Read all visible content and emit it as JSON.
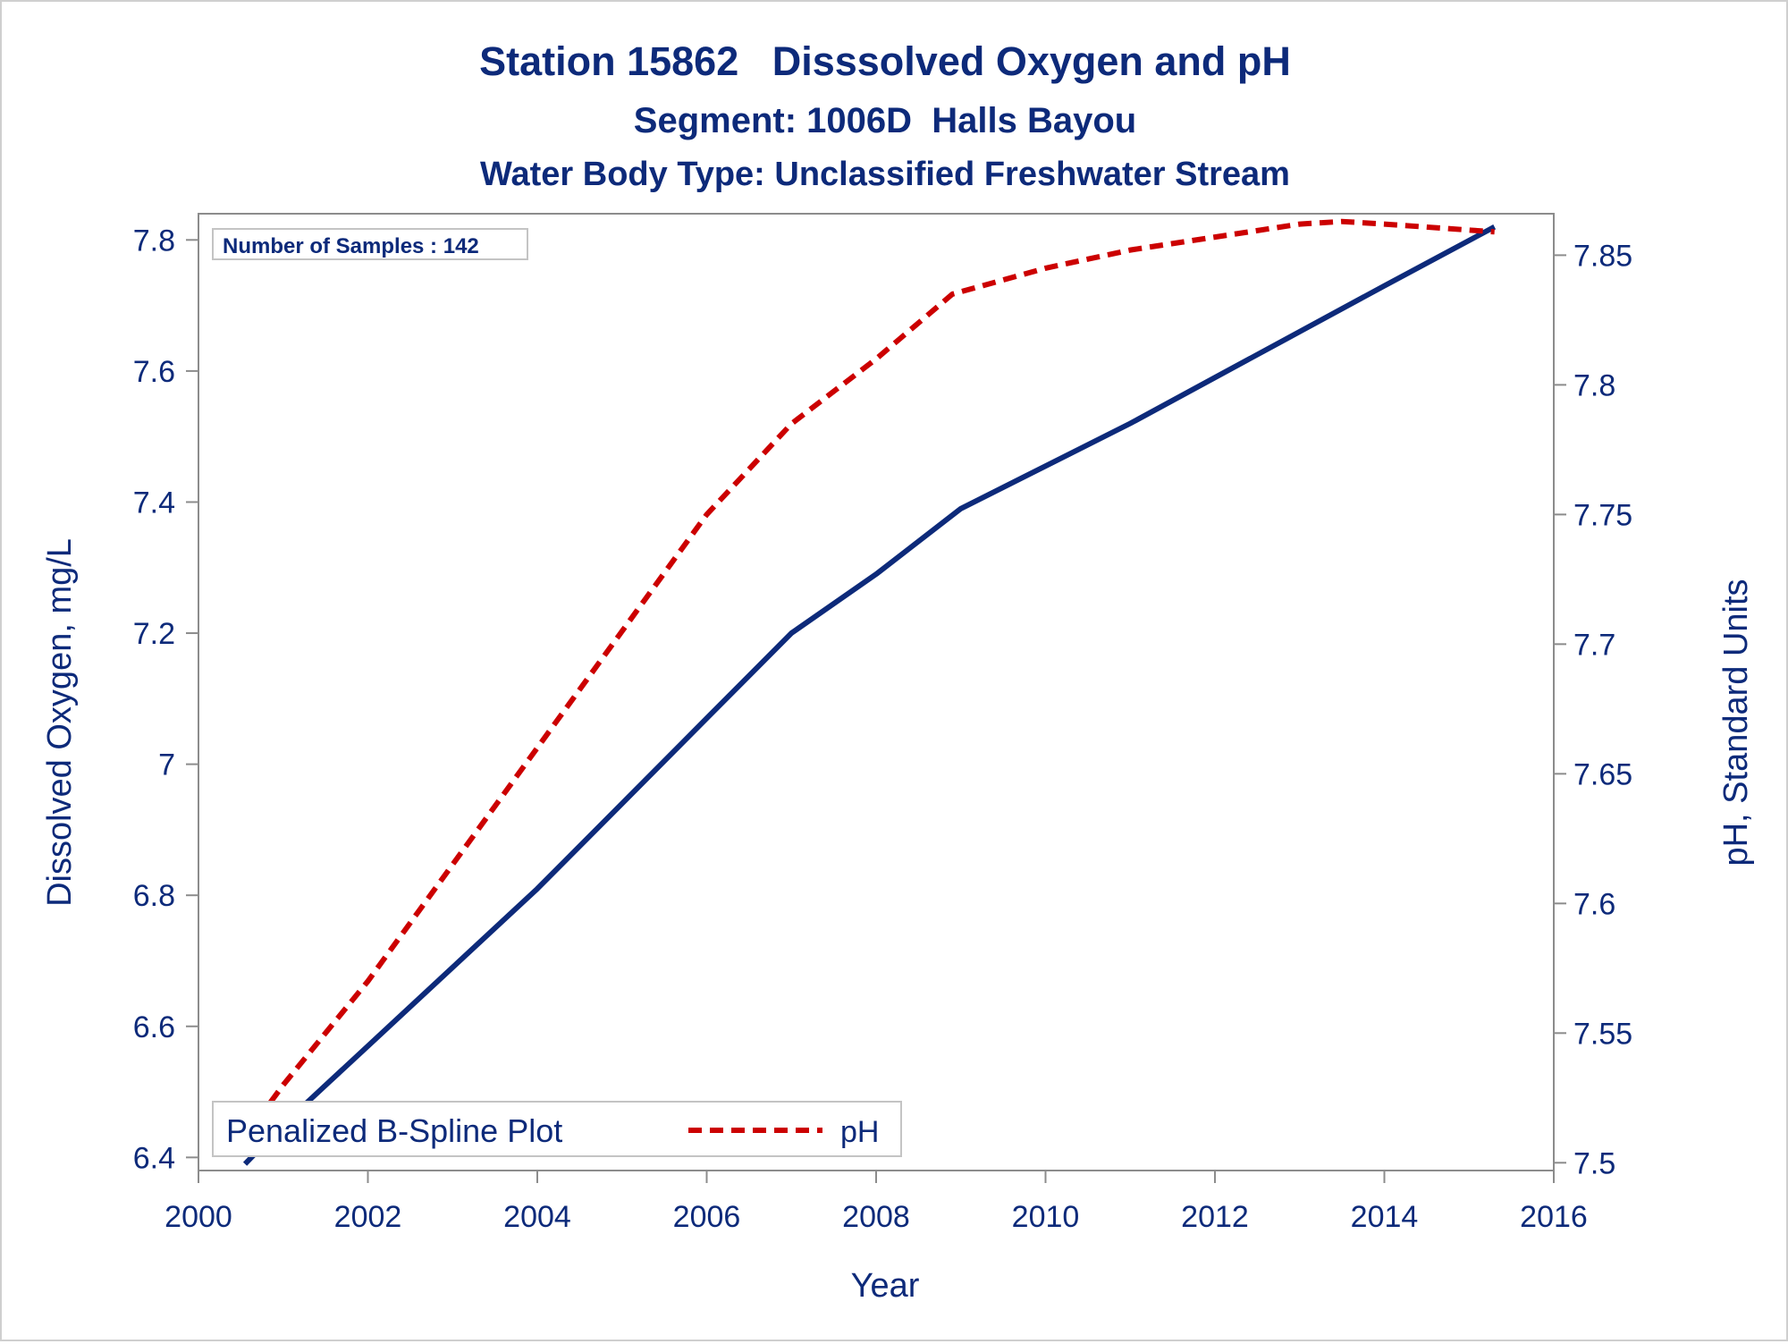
{
  "chart_data": {
    "type": "line",
    "title": "Station 15862   Disssolved Oxygen and pH",
    "subtitles": [
      "Segment: 1006D  Halls Bayou",
      "Water Body Type: Unclassified Freshwater Stream"
    ],
    "xlabel": "Year",
    "ylabel": "Dissolved Oxygen, mg/L",
    "y2label": "pH, Standard Units",
    "xlim": [
      2000,
      2016
    ],
    "ylim": [
      6.38,
      7.84
    ],
    "y2lim": [
      7.497,
      7.866
    ],
    "x_ticks": [
      2000,
      2002,
      2004,
      2006,
      2008,
      2010,
      2012,
      2014,
      2016
    ],
    "y_ticks": [
      6.4,
      6.6,
      6.8,
      7,
      7.2,
      7.4,
      7.6,
      7.8
    ],
    "y_tick_labels": [
      "6.4",
      "6.6",
      "6.8",
      "7",
      "7.2",
      "7.4",
      "7.6",
      "7.8"
    ],
    "y2_ticks": [
      7.5,
      7.55,
      7.6,
      7.65,
      7.7,
      7.75,
      7.8,
      7.85
    ],
    "y2_tick_labels": [
      "7.5",
      "7.55",
      "7.6",
      "7.65",
      "7.7",
      "7.75",
      "7.8",
      "7.85"
    ],
    "grid": false,
    "inset_label": "Number of Samples : 142",
    "legend": {
      "placement": "bottom-left",
      "title": "Penalized B-Spline Plot",
      "entries": [
        "pH"
      ]
    },
    "series": [
      {
        "key": "do",
        "axis": "left",
        "color": "#0d2a7a",
        "style": "solid",
        "x": [
          2000.55,
          2001,
          2001.5,
          2002,
          2003,
          2004,
          2005,
          2006,
          2007,
          2008,
          2009,
          2010,
          2011,
          2012,
          2013,
          2014,
          2015.3
        ],
        "y": [
          6.39,
          6.45,
          6.51,
          6.57,
          6.69,
          6.81,
          6.94,
          7.07,
          7.2,
          7.29,
          7.39,
          7.455,
          7.52,
          7.59,
          7.66,
          7.73,
          7.82
        ]
      },
      {
        "key": "ph",
        "name": "pH",
        "axis": "right",
        "color": "#cc0000",
        "style": "dashed",
        "x": [
          2000.55,
          2001,
          2001.5,
          2002,
          2003,
          2004,
          2005,
          2006,
          2007,
          2008,
          2008.9,
          2010,
          2011,
          2012,
          2013,
          2013.5,
          2014,
          2015.3
        ],
        "y": [
          7.51,
          7.53,
          7.55,
          7.57,
          7.615,
          7.66,
          7.705,
          7.75,
          7.785,
          7.81,
          7.835,
          7.845,
          7.852,
          7.857,
          7.862,
          7.863,
          7.862,
          7.859
        ]
      }
    ]
  },
  "colors": {
    "text": "#0d2a7a",
    "axis": "#8c8c8c",
    "do_line": "#0d2a7a",
    "ph_line": "#cc0000"
  }
}
